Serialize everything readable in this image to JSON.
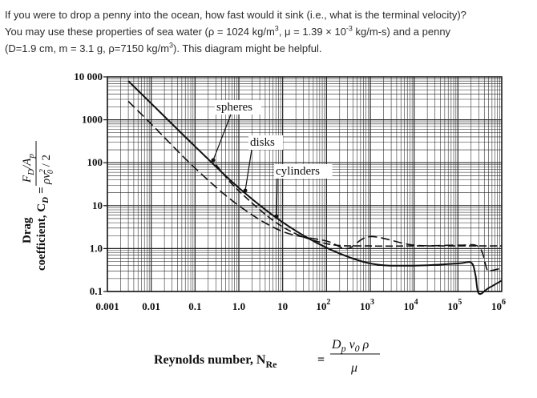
{
  "question": {
    "line1": "If you were to drop a penny into the ocean, how fast would it sink (i.e., what is the terminal velocity)?",
    "line2_pre": "You may use these properties of sea water (ρ = 1024 kg/m",
    "line2_sup1": "3",
    "line2_mid": ", μ = 1.39 × 10",
    "line2_sup2": "-3",
    "line2_post": " kg/m-s) and a penny",
    "line3_pre": "(D=1.9 cm, m = 3.1 g, ρ=7150 kg/m",
    "line3_sup": "3",
    "line3_post": "). This diagram might be helpful."
  },
  "chart_data": {
    "type": "line",
    "title": "",
    "xscale": "log",
    "yscale": "log",
    "xlim": [
      0.001,
      1000000
    ],
    "ylim": [
      0.1,
      10000
    ],
    "grid": true,
    "x_ticks": [
      {
        "value": 0.001,
        "base": "0.001",
        "exp": ""
      },
      {
        "value": 0.01,
        "base": "0.01",
        "exp": ""
      },
      {
        "value": 0.1,
        "base": "0.1",
        "exp": ""
      },
      {
        "value": 1,
        "base": "1.0",
        "exp": ""
      },
      {
        "value": 10,
        "base": "10",
        "exp": ""
      },
      {
        "value": 100,
        "base": "10",
        "exp": "2"
      },
      {
        "value": 1000,
        "base": "10",
        "exp": "3"
      },
      {
        "value": 10000,
        "base": "10",
        "exp": "4"
      },
      {
        "value": 100000,
        "base": "10",
        "exp": "5"
      },
      {
        "value": 1000000,
        "base": "10",
        "exp": "6"
      }
    ],
    "y_ticks": [
      {
        "value": 0.1,
        "label": "0.1"
      },
      {
        "value": 1,
        "label": "1.0"
      },
      {
        "value": 10,
        "label": "10"
      },
      {
        "value": 100,
        "label": "100"
      },
      {
        "value": 1000,
        "label": "1000"
      },
      {
        "value": 10000,
        "label": "10 000"
      }
    ],
    "ylabel_line1": "Drag",
    "ylabel_line2": "coefficient, C",
    "ylabel_sub": "D",
    "ylabel_eq": "=",
    "ylabel_frac_num": "F",
    "ylabel_frac_num_sub": "D",
    "ylabel_frac_num_rest": "/A",
    "ylabel_frac_num_sub2": "p",
    "ylabel_frac_den": "ρv",
    "ylabel_frac_den_sup": "2",
    "ylabel_frac_den_sub": "0",
    "ylabel_frac_den_rest": " / 2",
    "xlabel_text": "Reynolds number, N",
    "xlabel_sub": "Re",
    "xlabel_eq": "=",
    "xlabel_frac_num": "D",
    "xlabel_frac_num_sub": "p",
    "xlabel_frac_num_rest": " v",
    "xlabel_frac_num_sub2": "0",
    "xlabel_frac_num_rest2": " ρ",
    "xlabel_frac_den": "μ",
    "annotations": [
      {
        "text": "spheres",
        "x": 30,
        "y": 48
      },
      {
        "text": "disks",
        "x": 55,
        "y": 35
      },
      {
        "text": "cylinders",
        "x": 30,
        "y": 15
      }
    ],
    "series": [
      {
        "name": "spheres",
        "style": "solid",
        "x": [
          0.003,
          0.01,
          0.1,
          1,
          10,
          100,
          1000,
          10000,
          100000,
          200000,
          250000,
          300000,
          500000,
          1000000
        ],
        "y": [
          8000,
          2400,
          240,
          26,
          4.1,
          1.05,
          0.45,
          0.4,
          0.45,
          0.47,
          0.25,
          0.09,
          0.12,
          0.18
        ]
      },
      {
        "name": "disks",
        "style": "dashed",
        "x": [
          0.3,
          1,
          10,
          100,
          1000,
          10000,
          100000,
          1000000
        ],
        "y": [
          90,
          22,
          3.2,
          1.3,
          1.15,
          1.15,
          1.15,
          1.15
        ]
      },
      {
        "name": "cylinders",
        "style": "dashed",
        "x": [
          0.003,
          0.01,
          0.1,
          1,
          10,
          100,
          300,
          1000,
          10000,
          100000,
          300000,
          450000,
          500000,
          1000000
        ],
        "y": [
          2700,
          800,
          75,
          10,
          2.5,
          1.5,
          1.0,
          1.9,
          1.2,
          1.2,
          1.1,
          0.35,
          0.3,
          0.35
        ]
      }
    ]
  }
}
